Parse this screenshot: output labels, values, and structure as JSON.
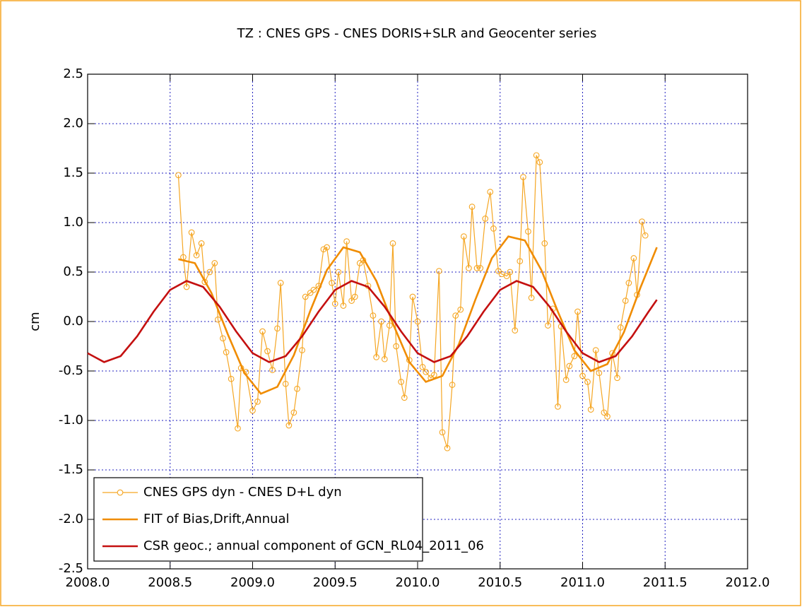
{
  "chart_data": {
    "type": "line",
    "title": "TZ : CNES GPS - CNES DORIS+SLR and Geocenter series",
    "y_label": "cm",
    "xlim": [
      2008,
      2012
    ],
    "xticks": [
      {
        "value": 2008,
        "label": "2008.0"
      },
      2008.5,
      {
        "value": 2009,
        "label": "2009.0"
      },
      2009.5,
      {
        "value": 2010,
        "label": "2010.0"
      },
      2010.5,
      {
        "value": 2011,
        "label": "2011.0"
      },
      2011.5,
      {
        "value": 2012,
        "label": "2012.0"
      }
    ],
    "ylim": [
      -2.5,
      2.5
    ],
    "yticks": [
      2.5,
      {
        "value": 2,
        "label": "2.0"
      },
      1.5,
      {
        "value": 1,
        "label": "1.0"
      },
      0.5,
      {
        "value": 0,
        "label": "0.0"
      },
      -0.5,
      {
        "value": -1,
        "label": "-1.0"
      },
      -1.5,
      {
        "value": -2,
        "label": "-2.0"
      },
      -2.5
    ],
    "grid": true,
    "legend": "lower left",
    "series": [
      {
        "name": "CNES GPS dyn - CNES D+L dyn",
        "color": "#f5a623",
        "marker": "circle",
        "x": [
          2008.55,
          2008.58,
          2008.6,
          2008.63,
          2008.66,
          2008.69,
          2008.71,
          2008.74,
          2008.77,
          2008.79,
          2008.82,
          2008.84,
          2008.87,
          2008.91,
          2008.93,
          2008.96,
          2009.0,
          2009.03,
          2009.06,
          2009.09,
          2009.12,
          2009.15,
          2009.17,
          2009.2,
          2009.22,
          2009.25,
          2009.27,
          2009.3,
          2009.32,
          2009.35,
          2009.37,
          2009.4,
          2009.43,
          2009.45,
          2009.48,
          2009.5,
          2009.52,
          2009.55,
          2009.57,
          2009.6,
          2009.62,
          2009.65,
          2009.67,
          2009.7,
          2009.73,
          2009.75,
          2009.78,
          2009.8,
          2009.83,
          2009.85,
          2009.87,
          2009.9,
          2009.92,
          2009.95,
          2009.97,
          2010.0,
          2010.03,
          2010.05,
          2010.08,
          2010.1,
          2010.13,
          2010.15,
          2010.18,
          2010.21,
          2010.23,
          2010.26,
          2010.28,
          2010.31,
          2010.33,
          2010.36,
          2010.38,
          2010.41,
          2010.44,
          2010.46,
          2010.49,
          2010.51,
          2010.54,
          2010.56,
          2010.59,
          2010.62,
          2010.64,
          2010.67,
          2010.69,
          2010.72,
          2010.74,
          2010.77,
          2010.79,
          2010.82,
          2010.85,
          2010.87,
          2010.9,
          2010.92,
          2010.95,
          2010.97,
          2011.0,
          2011.03,
          2011.05,
          2011.08,
          2011.1,
          2011.13,
          2011.15,
          2011.18,
          2011.21,
          2011.23,
          2011.26,
          2011.28,
          2011.31,
          2011.33,
          2011.36,
          2011.38
        ],
        "values": [
          1.48,
          0.65,
          0.35,
          0.9,
          0.67,
          0.79,
          0.4,
          0.5,
          0.59,
          0.02,
          -0.17,
          -0.31,
          -0.58,
          -1.08,
          -0.47,
          -0.51,
          -0.9,
          -0.81,
          -0.1,
          -0.3,
          -0.49,
          -0.07,
          0.39,
          -0.63,
          -1.05,
          -0.92,
          -0.68,
          -0.29,
          0.25,
          0.29,
          0.32,
          0.36,
          0.73,
          0.75,
          0.39,
          0.18,
          0.5,
          0.16,
          0.81,
          0.21,
          0.25,
          0.59,
          0.62,
          0.36,
          0.06,
          -0.36,
          0.0,
          -0.38,
          -0.04,
          0.79,
          -0.25,
          -0.61,
          -0.77,
          -0.39,
          0.25,
          0.0,
          -0.46,
          -0.51,
          -0.57,
          -0.54,
          0.51,
          -1.12,
          -1.28,
          -0.64,
          0.06,
          0.12,
          0.86,
          0.54,
          1.16,
          0.54,
          0.54,
          1.04,
          1.31,
          0.94,
          0.51,
          0.48,
          0.46,
          0.5,
          -0.09,
          0.61,
          1.46,
          0.91,
          0.24,
          1.68,
          1.61,
          0.79,
          -0.04,
          0.13,
          -0.86,
          -0.05,
          -0.59,
          -0.45,
          -0.35,
          0.1,
          -0.55,
          -0.61,
          -0.89,
          -0.29,
          -0.52,
          -0.92,
          -0.96,
          -0.32,
          -0.57,
          -0.06,
          0.21,
          0.39,
          0.64,
          0.27,
          1.01,
          0.87
        ]
      },
      {
        "name": "FIT of Bias,Drift,Annual",
        "color": "#f08c00",
        "x": [
          2008.55,
          2008.65,
          2008.75,
          2008.85,
          2008.95,
          2009.05,
          2009.15,
          2009.25,
          2009.35,
          2009.45,
          2009.55,
          2009.65,
          2009.75,
          2009.85,
          2009.95,
          2010.05,
          2010.15,
          2010.25,
          2010.35,
          2010.45,
          2010.55,
          2010.65,
          2010.75,
          2010.85,
          2010.95,
          2011.05,
          2011.15,
          2011.25,
          2011.35,
          2011.45
        ],
        "values": [
          0.63,
          0.59,
          0.29,
          -0.13,
          -0.52,
          -0.73,
          -0.66,
          -0.34,
          0.11,
          0.52,
          0.75,
          0.7,
          0.41,
          -0.02,
          -0.41,
          -0.61,
          -0.55,
          -0.23,
          0.22,
          0.64,
          0.86,
          0.82,
          0.52,
          0.1,
          -0.29,
          -0.5,
          -0.43,
          -0.11,
          0.34,
          0.75
        ]
      },
      {
        "name": "CSR geoc.; annual component of GCN_RL04_2011_06",
        "color": "#c41010",
        "x": [
          2008.0,
          2008.1,
          2008.2,
          2008.3,
          2008.4,
          2008.5,
          2008.6,
          2008.7,
          2008.8,
          2008.9,
          2009.0,
          2009.1,
          2009.2,
          2009.3,
          2009.4,
          2009.5,
          2009.6,
          2009.7,
          2009.8,
          2009.9,
          2010.0,
          2010.1,
          2010.2,
          2010.3,
          2010.4,
          2010.5,
          2010.6,
          2010.7,
          2010.8,
          2010.9,
          2011.0,
          2011.1,
          2011.2,
          2011.3,
          2011.4,
          2011.45
        ],
        "values": [
          -0.32,
          -0.41,
          -0.35,
          -0.15,
          0.1,
          0.32,
          0.41,
          0.35,
          0.15,
          -0.1,
          -0.32,
          -0.41,
          -0.35,
          -0.15,
          0.1,
          0.32,
          0.41,
          0.35,
          0.15,
          -0.1,
          -0.32,
          -0.41,
          -0.35,
          -0.15,
          0.1,
          0.32,
          0.41,
          0.35,
          0.15,
          -0.1,
          -0.32,
          -0.41,
          -0.35,
          -0.15,
          0.1,
          0.22
        ]
      }
    ]
  }
}
